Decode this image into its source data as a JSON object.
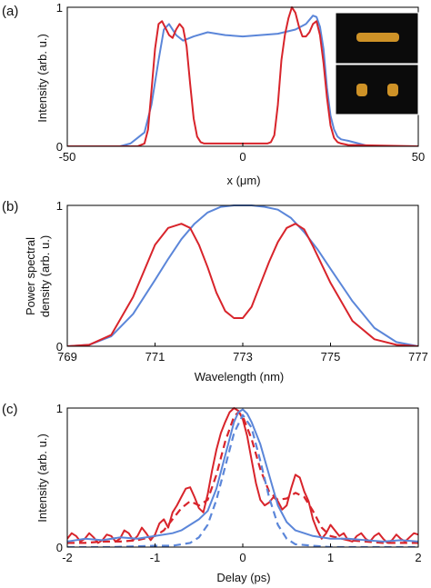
{
  "chart_data": [
    {
      "type": "line",
      "panel": "(a)",
      "xlabel": "x (μm)",
      "ylabel": "Intensity (arb. u.)",
      "xlim": [
        -50,
        50
      ],
      "ylim": [
        0,
        1
      ],
      "xticks": [
        -50,
        0,
        50
      ],
      "yticks": [
        0,
        1
      ],
      "series": [
        {
          "color": "#5b86d9",
          "style": "solid",
          "x": [
            -50,
            -35,
            -32,
            -30,
            -28,
            -26,
            -24,
            -22.5,
            -21,
            -19,
            -17,
            -14,
            -10,
            -5,
            0,
            5,
            10,
            15,
            18,
            20,
            21,
            22,
            23,
            24,
            25,
            26,
            27,
            28,
            30,
            33,
            36
          ],
          "y": [
            0,
            0,
            0.02,
            0.06,
            0.1,
            0.3,
            0.62,
            0.84,
            0.88,
            0.8,
            0.76,
            0.79,
            0.82,
            0.8,
            0.79,
            0.8,
            0.81,
            0.84,
            0.88,
            0.94,
            0.93,
            0.86,
            0.7,
            0.42,
            0.22,
            0.12,
            0.07,
            0.05,
            0.04,
            0.02,
            0
          ]
        },
        {
          "color": "#d8242b",
          "style": "solid",
          "x": [
            -50,
            -30,
            -28,
            -27,
            -26,
            -25,
            -24,
            -23,
            -22,
            -21,
            -20,
            -19,
            -18,
            -17,
            -16,
            -15,
            -14,
            -13,
            -12,
            -11,
            -10,
            -9,
            -5,
            0,
            5,
            7,
            8,
            9,
            10,
            11,
            12,
            13,
            14,
            15,
            16,
            17,
            18,
            19,
            20,
            21,
            22,
            23,
            24,
            25,
            26,
            27,
            28,
            30,
            50
          ],
          "y": [
            0,
            0,
            0.02,
            0.12,
            0.4,
            0.7,
            0.88,
            0.9,
            0.85,
            0.8,
            0.78,
            0.84,
            0.88,
            0.85,
            0.72,
            0.45,
            0.2,
            0.07,
            0.03,
            0.02,
            0.02,
            0.02,
            0.02,
            0.02,
            0.02,
            0.02,
            0.03,
            0.08,
            0.3,
            0.62,
            0.8,
            0.92,
            1.0,
            0.96,
            0.86,
            0.79,
            0.79,
            0.82,
            0.88,
            0.9,
            0.8,
            0.6,
            0.35,
            0.15,
            0.06,
            0.03,
            0.02,
            0.01,
            0
          ]
        }
      ]
    },
    {
      "type": "line",
      "panel": "(b)",
      "xlabel": "Wavelength (nm)",
      "ylabel": "Power spectral density (arb. u.)",
      "xlim": [
        769,
        777
      ],
      "ylim": [
        0,
        1
      ],
      "xticks": [
        769,
        771,
        773,
        775,
        777
      ],
      "yticks": [
        0,
        1
      ],
      "series": [
        {
          "color": "#5b86d9",
          "style": "solid",
          "x": [
            769,
            769.5,
            770,
            770.5,
            771,
            771.3,
            771.6,
            771.9,
            772.2,
            772.5,
            772.8,
            773,
            773.2,
            773.5,
            773.8,
            774.1,
            774.4,
            774.7,
            775,
            775.5,
            776,
            776.5,
            777
          ],
          "y": [
            0,
            0.01,
            0.07,
            0.23,
            0.47,
            0.62,
            0.76,
            0.87,
            0.95,
            0.99,
            1.0,
            1.0,
            1.0,
            0.99,
            0.97,
            0.91,
            0.81,
            0.69,
            0.55,
            0.32,
            0.13,
            0.03,
            0
          ]
        },
        {
          "color": "#d8242b",
          "style": "solid",
          "x": [
            769,
            769.5,
            770,
            770.5,
            771,
            771.3,
            771.6,
            771.8,
            772,
            772.2,
            772.4,
            772.6,
            772.8,
            773,
            773.2,
            773.4,
            773.6,
            773.8,
            774,
            774.2,
            774.4,
            774.6,
            775,
            775.5,
            776,
            776.5,
            777
          ],
          "y": [
            0,
            0.01,
            0.08,
            0.35,
            0.72,
            0.84,
            0.87,
            0.84,
            0.72,
            0.56,
            0.38,
            0.25,
            0.2,
            0.2,
            0.28,
            0.44,
            0.6,
            0.74,
            0.84,
            0.87,
            0.83,
            0.71,
            0.45,
            0.18,
            0.05,
            0.01,
            0
          ]
        }
      ]
    },
    {
      "type": "line",
      "panel": "(c)",
      "xlabel": "Delay (ps)",
      "ylabel": "Intensity (arb. u.)",
      "xlim": [
        -2,
        2
      ],
      "ylim": [
        0,
        1
      ],
      "xticks": [
        -2,
        -1,
        0,
        1,
        2
      ],
      "yticks": [
        0,
        1
      ],
      "series": [
        {
          "color": "#d8242b",
          "style": "solid",
          "x": [
            -2,
            -1.95,
            -1.9,
            -1.85,
            -1.8,
            -1.75,
            -1.7,
            -1.65,
            -1.6,
            -1.55,
            -1.5,
            -1.45,
            -1.4,
            -1.35,
            -1.3,
            -1.25,
            -1.2,
            -1.15,
            -1.1,
            -1.05,
            -1,
            -0.95,
            -0.9,
            -0.85,
            -0.8,
            -0.75,
            -0.7,
            -0.65,
            -0.6,
            -0.55,
            -0.5,
            -0.45,
            -0.4,
            -0.35,
            -0.3,
            -0.25,
            -0.2,
            -0.15,
            -0.1,
            -0.05,
            0,
            0.05,
            0.1,
            0.15,
            0.2,
            0.25,
            0.3,
            0.35,
            0.4,
            0.45,
            0.5,
            0.55,
            0.6,
            0.65,
            0.7,
            0.75,
            0.8,
            0.85,
            0.9,
            0.95,
            1,
            1.05,
            1.1,
            1.15,
            1.2,
            1.25,
            1.3,
            1.35,
            1.4,
            1.45,
            1.5,
            1.55,
            1.6,
            1.65,
            1.7,
            1.75,
            1.8,
            1.85,
            1.9,
            1.95,
            2
          ],
          "y": [
            0.06,
            0.1,
            0.08,
            0.04,
            0.06,
            0.1,
            0.07,
            0.03,
            0.05,
            0.09,
            0.08,
            0.04,
            0.06,
            0.12,
            0.1,
            0.05,
            0.08,
            0.14,
            0.1,
            0.05,
            0.09,
            0.17,
            0.2,
            0.14,
            0.25,
            0.3,
            0.36,
            0.42,
            0.43,
            0.36,
            0.28,
            0.25,
            0.38,
            0.55,
            0.7,
            0.82,
            0.9,
            0.97,
            1.0,
            0.98,
            0.92,
            0.8,
            0.63,
            0.46,
            0.34,
            0.3,
            0.32,
            0.36,
            0.33,
            0.27,
            0.3,
            0.42,
            0.52,
            0.5,
            0.4,
            0.33,
            0.2,
            0.12,
            0.06,
            0.1,
            0.16,
            0.12,
            0.08,
            0.1,
            0.05,
            0.04,
            0.08,
            0.1,
            0.06,
            0.04,
            0.08,
            0.1,
            0.06,
            0.03,
            0.05,
            0.09,
            0.06,
            0.04,
            0.07,
            0.1,
            0.09
          ]
        },
        {
          "color": "#d8242b",
          "style": "dashed",
          "x": [
            -2,
            -1.8,
            -1.6,
            -1.4,
            -1.2,
            -1,
            -0.9,
            -0.8,
            -0.7,
            -0.6,
            -0.5,
            -0.4,
            -0.3,
            -0.2,
            -0.1,
            -0.05,
            0,
            0.1,
            0.2,
            0.3,
            0.4,
            0.5,
            0.6,
            0.7,
            0.8,
            0.9,
            1,
            1.2,
            1.4,
            1.6,
            1.8,
            2
          ],
          "y": [
            0.03,
            0.03,
            0.04,
            0.04,
            0.05,
            0.08,
            0.12,
            0.2,
            0.28,
            0.33,
            0.3,
            0.34,
            0.52,
            0.76,
            0.94,
            0.97,
            0.94,
            0.78,
            0.56,
            0.4,
            0.34,
            0.35,
            0.39,
            0.36,
            0.26,
            0.14,
            0.08,
            0.05,
            0.04,
            0.03,
            0.03,
            0.03
          ]
        },
        {
          "color": "#5b86d9",
          "style": "solid",
          "x": [
            -2,
            -1.8,
            -1.6,
            -1.4,
            -1.2,
            -1,
            -0.8,
            -0.7,
            -0.6,
            -0.5,
            -0.4,
            -0.3,
            -0.2,
            -0.1,
            -0.05,
            0,
            0.05,
            0.1,
            0.2,
            0.3,
            0.4,
            0.5,
            0.6,
            0.7,
            0.8,
            0.9,
            1,
            1.2,
            1.4,
            1.6,
            1.8,
            2
          ],
          "y": [
            0.04,
            0.06,
            0.05,
            0.07,
            0.06,
            0.08,
            0.1,
            0.12,
            0.16,
            0.2,
            0.26,
            0.42,
            0.66,
            0.9,
            0.97,
            0.99,
            0.96,
            0.9,
            0.74,
            0.52,
            0.3,
            0.18,
            0.12,
            0.1,
            0.08,
            0.07,
            0.06,
            0.06,
            0.05,
            0.04,
            0.05,
            0.04
          ]
        },
        {
          "color": "#5b86d9",
          "style": "dashed",
          "x": [
            -2,
            -1.5,
            -1,
            -0.8,
            -0.6,
            -0.5,
            -0.4,
            -0.3,
            -0.2,
            -0.1,
            0,
            0.1,
            0.2,
            0.3,
            0.4,
            0.5,
            0.6,
            0.8,
            1,
            1.5,
            2
          ],
          "y": [
            0,
            0,
            0.01,
            0.01,
            0.03,
            0.07,
            0.16,
            0.34,
            0.58,
            0.82,
            0.95,
            0.86,
            0.62,
            0.36,
            0.16,
            0.06,
            0.02,
            0.01,
            0,
            0,
            0
          ]
        }
      ]
    }
  ],
  "inset": {
    "background": "#0b0b0b",
    "glow_color": "#e3a12a"
  }
}
